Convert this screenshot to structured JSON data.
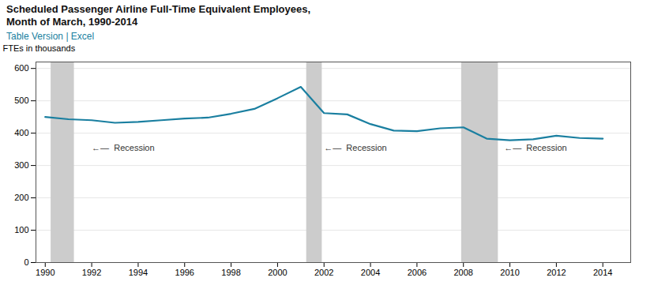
{
  "chart_data": {
    "type": "line",
    "title": "Scheduled Passenger Airline Full-Time Equivalent Employees,\nMonth of March, 1990-2014",
    "subtitle": "Table Version | Excel",
    "ylabel": "FTEs in thousands",
    "x": [
      1990,
      1991,
      1992,
      1993,
      1994,
      1995,
      1996,
      1997,
      1998,
      1999,
      2000,
      2001,
      2002,
      2003,
      2004,
      2005,
      2006,
      2007,
      2008,
      2009,
      2010,
      2011,
      2012,
      2013,
      2014
    ],
    "values": [
      450,
      443,
      440,
      432,
      435,
      440,
      445,
      448,
      460,
      475,
      508,
      543,
      462,
      458,
      428,
      408,
      406,
      415,
      418,
      383,
      378,
      381,
      392,
      385,
      383
    ],
    "color": "#1a7fa0",
    "bands": [
      {
        "start": 1990.25,
        "end": 1991.25,
        "color": "#cccccc"
      },
      {
        "start": 2001.25,
        "end": 2001.92,
        "color": "#cccccc"
      },
      {
        "start": 2007.92,
        "end": 2009.5,
        "color": "#cccccc"
      }
    ],
    "annotations": [
      {
        "x": 1992.0,
        "y": 355,
        "text": "←—  Recession"
      },
      {
        "x": 2002.0,
        "y": 355,
        "text": "←—  Recession"
      },
      {
        "x": 2009.75,
        "y": 355,
        "text": "←—  Recession"
      }
    ],
    "xlim": [
      1989.6,
      2015.2
    ],
    "xticks": [
      1990,
      1992,
      1994,
      1996,
      1998,
      2000,
      2002,
      2004,
      2006,
      2008,
      2010,
      2012,
      2014
    ],
    "ylim": [
      0,
      620
    ],
    "yticks": [
      0,
      100,
      200,
      300,
      400,
      500,
      600
    ],
    "grid": true
  }
}
